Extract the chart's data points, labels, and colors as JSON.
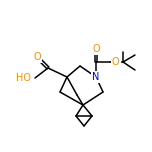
{
  "bg_color": "#ffffff",
  "bond_color": "#000000",
  "atom_colors": {
    "O": "#ff8c00",
    "N": "#0000cd",
    "C": "#000000"
  },
  "figsize": [
    1.52,
    1.52
  ],
  "dpi": 100,
  "lw": 1.1
}
